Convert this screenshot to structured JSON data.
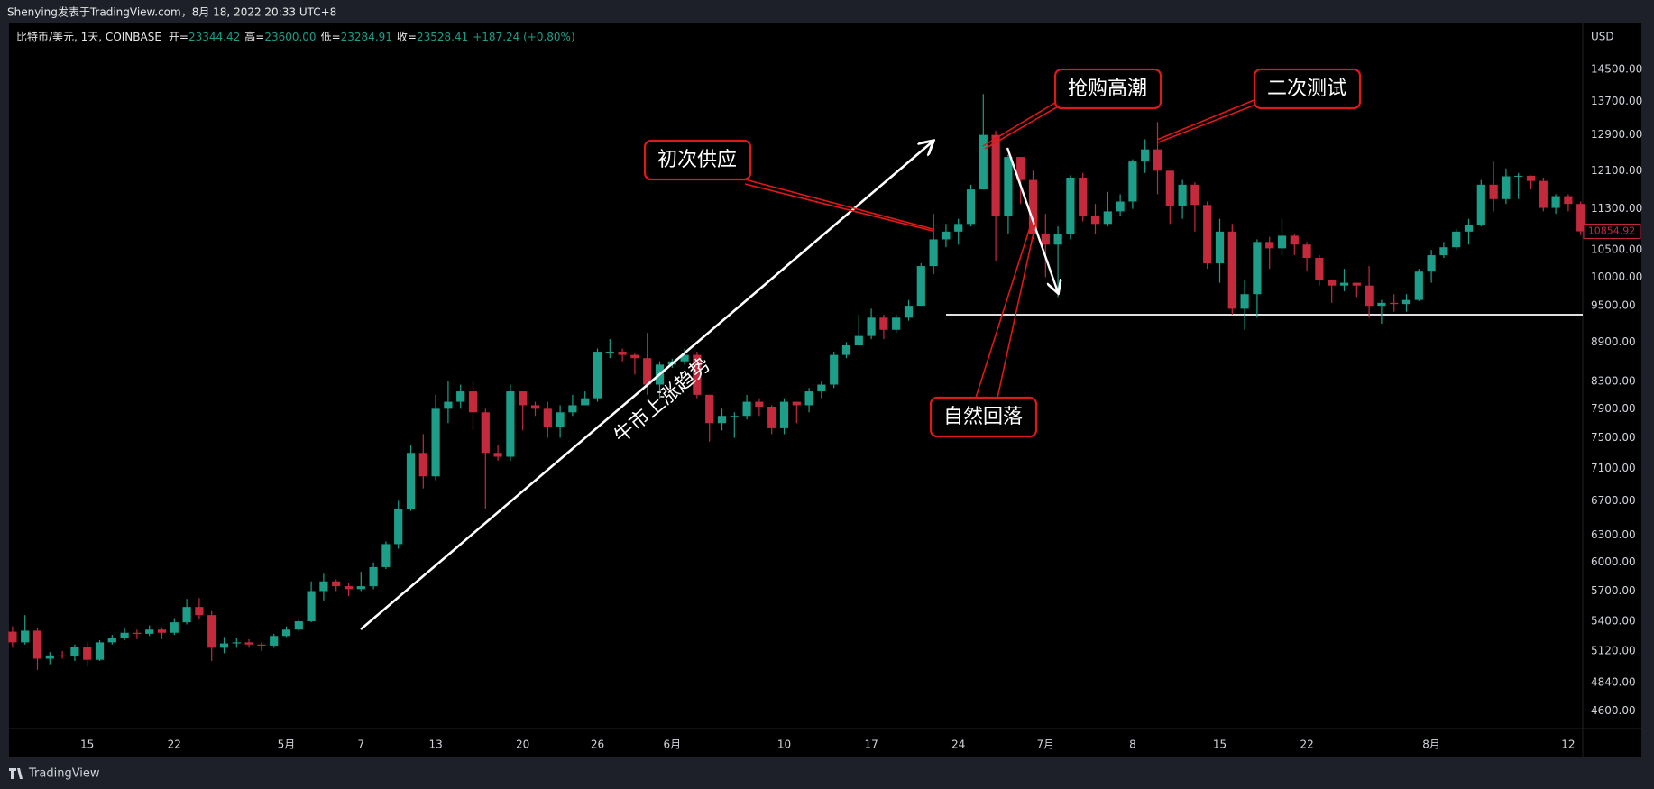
{
  "header": {
    "caption": "Shenying发表于TradingView.com，8月 18, 2022 20:33 UTC+8"
  },
  "footer": {
    "brand": "TradingView"
  },
  "chart_data": {
    "type": "candlestick",
    "symbol": "比特币/美元, 1天, COINBASE",
    "legend": [
      {
        "label": "开=",
        "value": "23344.42"
      },
      {
        "label": "高=",
        "value": "23600.00"
      },
      {
        "label": "低=",
        "value": "23284.91"
      },
      {
        "label": "收=",
        "value": "23528.41"
      }
    ],
    "change": "+187.24 (+0.80%)",
    "currency": "USD",
    "up_color": "#1c9e88",
    "down_color": "#c42a3c",
    "log_scale": true,
    "grid": false,
    "ylim": [
      4456,
      15750
    ],
    "yticks": [
      {
        "value": 4600,
        "label": "4600.00"
      },
      {
        "value": 4840,
        "label": "4840.00"
      },
      {
        "value": 5120,
        "label": "5120.00"
      },
      {
        "value": 5400,
        "label": "5400.00"
      },
      {
        "value": 5700,
        "label": "5700.00"
      },
      {
        "value": 6000,
        "label": "6000.00"
      },
      {
        "value": 6300,
        "label": "6300.00"
      },
      {
        "value": 6700,
        "label": "6700.00"
      },
      {
        "value": 7100,
        "label": "7100.00"
      },
      {
        "value": 7500,
        "label": "7500.00"
      },
      {
        "value": 7900,
        "label": "7900.00"
      },
      {
        "value": 8300,
        "label": "8300.00"
      },
      {
        "value": 8900,
        "label": "8900.00"
      },
      {
        "value": 9500,
        "label": "9500.00"
      },
      {
        "value": 10000,
        "label": "10000.00"
      },
      {
        "value": 10500,
        "label": "10500.00"
      },
      {
        "value": 11300,
        "label": "11300.00"
      },
      {
        "value": 12100,
        "label": "12100.00"
      },
      {
        "value": 12900,
        "label": "12900.00"
      },
      {
        "value": 13700,
        "label": "13700.00"
      },
      {
        "value": 14500,
        "label": "14500.00"
      }
    ],
    "support_line": 9350,
    "annotations": [
      "初次供应",
      "抢购高潮",
      "二次测试",
      "自然回落",
      "牛市上涨趋势"
    ],
    "categories": [
      null,
      null,
      null,
      null,
      null,
      null,
      "15",
      null,
      null,
      null,
      null,
      null,
      null,
      "22",
      null,
      null,
      null,
      null,
      null,
      null,
      null,
      null,
      "5月",
      null,
      null,
      null,
      null,
      null,
      "7",
      null,
      null,
      null,
      null,
      null,
      "13",
      null,
      null,
      null,
      null,
      null,
      null,
      "20",
      null,
      null,
      null,
      null,
      null,
      "26",
      null,
      null,
      null,
      null,
      null,
      "6月",
      null,
      null,
      null,
      null,
      null,
      null,
      null,
      null,
      "10",
      null,
      null,
      null,
      null,
      null,
      null,
      "17",
      null,
      null,
      null,
      null,
      null,
      null,
      "24",
      null,
      null,
      null,
      null,
      null,
      null,
      "7月",
      null,
      null,
      null,
      null,
      null,
      null,
      "8",
      null,
      null,
      null,
      null,
      null,
      null,
      "15",
      null,
      null,
      null,
      null,
      null,
      null,
      "22",
      null,
      null,
      null,
      null,
      null,
      null,
      null,
      null,
      null,
      "8月",
      null,
      null,
      null,
      null,
      null,
      null,
      null,
      null,
      null,
      null,
      "12",
      null
    ],
    "open": [
      5300,
      5200,
      5310,
      5050,
      5080,
      5070,
      5160,
      5040,
      5200,
      5240,
      5290,
      5280,
      5320,
      5290,
      5390,
      5540,
      5460,
      5150,
      5190,
      5200,
      5180,
      5170,
      5260,
      5320,
      5400,
      5700,
      5800,
      5750,
      5720,
      5750,
      5950,
      6200,
      6600,
      7300,
      7000,
      7900,
      8000,
      8150,
      7850,
      7300,
      7250,
      8150,
      7950,
      7900,
      7650,
      7850,
      7950,
      8050,
      8750,
      8750,
      8700,
      8650,
      8250,
      8550,
      8600,
      8700,
      8100,
      7700,
      7800,
      7800,
      8000,
      7930,
      7630,
      8000,
      7950,
      8150,
      8250,
      8700,
      8850,
      9000,
      9300,
      9100,
      9300,
      9500,
      10200,
      10700,
      10850,
      11000,
      11700,
      12900,
      11150,
      12400,
      11900,
      10800,
      10600,
      10800,
      11950,
      11150,
      11000,
      11250,
      11450,
      12300,
      12570,
      12100,
      11350,
      11800,
      11380,
      10250,
      10850,
      9450,
      9700,
      10650,
      10530,
      10770,
      10600,
      10350,
      9950,
      9850,
      9900,
      9850,
      9500,
      9550,
      9530,
      9600,
      10100,
      10400,
      10550,
      10850,
      10980,
      11800,
      11500,
      11980,
      11990,
      11880,
      11320,
      11560,
      11400
    ],
    "high": [
      5350,
      5460,
      5340,
      5110,
      5120,
      5180,
      5200,
      5220,
      5270,
      5330,
      5320,
      5360,
      5340,
      5430,
      5620,
      5630,
      5500,
      5250,
      5240,
      5230,
      5200,
      5280,
      5350,
      5420,
      5800,
      5880,
      5820,
      5780,
      5900,
      6000,
      6230,
      6700,
      7400,
      7550,
      8100,
      8300,
      8250,
      8300,
      7900,
      7400,
      8250,
      8150,
      8000,
      8000,
      7950,
      8100,
      8150,
      8800,
      8950,
      8800,
      8720,
      9050,
      8600,
      8640,
      8800,
      8750,
      8100,
      7900,
      7850,
      8100,
      8050,
      7950,
      8050,
      8000,
      8200,
      8300,
      8750,
      8900,
      9350,
      9450,
      9350,
      9350,
      9600,
      10250,
      11200,
      11000,
      11100,
      11800,
      13880,
      13000,
      12450,
      12400,
      12100,
      11200,
      10950,
      12000,
      12050,
      11400,
      11650,
      11600,
      12350,
      12800,
      13200,
      12100,
      11900,
      11850,
      11450,
      11100,
      11000,
      9950,
      10700,
      10750,
      11100,
      10800,
      10650,
      10400,
      9950,
      10150,
      9900,
      10200,
      9600,
      9700,
      9700,
      10150,
      10500,
      10650,
      10900,
      11100,
      11900,
      12300,
      12150,
      12050,
      12000,
      11950,
      11600,
      11600,
      11450
    ],
    "low": [
      5150,
      5180,
      4950,
      5000,
      5050,
      5030,
      4980,
      5030,
      5180,
      5220,
      5230,
      5260,
      5230,
      5270,
      5370,
      5420,
      5030,
      5100,
      5150,
      5150,
      5120,
      5150,
      5250,
      5300,
      5390,
      5600,
      5700,
      5650,
      5700,
      5720,
      5930,
      6150,
      6580,
      6850,
      6950,
      7700,
      7900,
      7600,
      6600,
      7200,
      7200,
      7600,
      7800,
      7500,
      7500,
      7800,
      7950,
      8000,
      8650,
      8600,
      8400,
      8100,
      8050,
      8500,
      8550,
      8050,
      7450,
      7600,
      7500,
      7750,
      7800,
      7550,
      7550,
      7700,
      7850,
      8050,
      8200,
      8650,
      8850,
      8950,
      8950,
      9050,
      9250,
      9500,
      10050,
      10550,
      10600,
      10950,
      11700,
      10300,
      10800,
      11400,
      10700,
      10000,
      9650,
      10700,
      11050,
      10800,
      10950,
      11150,
      11300,
      12050,
      11600,
      11000,
      11100,
      10850,
      10150,
      9900,
      9350,
      9100,
      9300,
      10150,
      10400,
      10400,
      10100,
      9850,
      9550,
      9750,
      9650,
      9300,
      9200,
      9400,
      9400,
      9580,
      9900,
      10350,
      10500,
      10600,
      10950,
      11250,
      11400,
      11500,
      11700,
      11250,
      11200,
      11250,
      10780
    ],
    "close": [
      5200,
      5310,
      5050,
      5080,
      5070,
      5160,
      5040,
      5200,
      5240,
      5290,
      5280,
      5320,
      5290,
      5390,
      5540,
      5460,
      5150,
      5190,
      5200,
      5180,
      5170,
      5260,
      5320,
      5400,
      5700,
      5800,
      5750,
      5720,
      5750,
      5950,
      6200,
      6600,
      7300,
      7000,
      7900,
      8000,
      8150,
      7850,
      7300,
      7250,
      8150,
      7950,
      7900,
      7650,
      7850,
      7950,
      8050,
      8750,
      8750,
      8700,
      8650,
      8250,
      8550,
      8600,
      8700,
      8100,
      7700,
      7800,
      7800,
      8000,
      7930,
      7630,
      8000,
      7950,
      8150,
      8250,
      8700,
      8850,
      9000,
      9300,
      9100,
      9300,
      9500,
      10200,
      10700,
      10850,
      11000,
      11700,
      12900,
      11150,
      12400,
      11900,
      10800,
      10600,
      10800,
      11950,
      11150,
      11000,
      11250,
      11450,
      12300,
      12570,
      12100,
      11350,
      11800,
      11380,
      10250,
      10850,
      9450,
      9700,
      10650,
      10530,
      10770,
      10600,
      10350,
      9950,
      9850,
      9900,
      9850,
      9500,
      9550,
      9530,
      9600,
      10100,
      10400,
      10550,
      10850,
      10980,
      11800,
      11500,
      11980,
      11990,
      11880,
      11320,
      11560,
      11400,
      10854.92
    ]
  }
}
